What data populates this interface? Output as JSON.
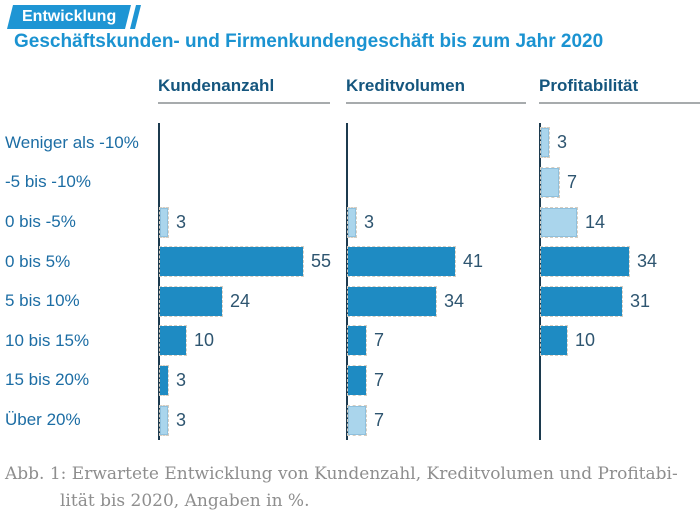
{
  "header": {
    "tag": "Entwicklung",
    "title": "Geschäftskunden- und Firmenkundengeschäft bis zum Jahr 2020"
  },
  "chart_data": {
    "type": "bar",
    "orientation": "horizontal",
    "title": "Geschäftskunden- und Firmenkundengeschäft bis zum Jahr 2020",
    "categories": [
      "Weniger als -10%",
      "-5 bis -10%",
      "0 bis -5%",
      "0 bis 5%",
      "5 bis 10%",
      "10 bis 15%",
      "15 bis 20%",
      "Über 20%"
    ],
    "series": [
      {
        "name": "Kundenanzahl",
        "values": [
          0,
          0,
          3,
          55,
          24,
          10,
          3,
          3
        ],
        "light_indices": [
          2,
          7
        ]
      },
      {
        "name": "Kreditvolumen",
        "values": [
          0,
          0,
          3,
          41,
          34,
          7,
          7,
          7
        ],
        "light_indices": [
          2,
          7
        ]
      },
      {
        "name": "Profitabilität",
        "values": [
          3,
          7,
          14,
          34,
          31,
          10,
          0,
          0
        ],
        "light_indices": [
          0,
          1,
          2
        ]
      }
    ],
    "xlim": [
      0,
      60
    ],
    "value_unit": "%",
    "grid": false,
    "legend": "none",
    "bars_labeled_with_values": true
  },
  "caption": {
    "line1": "Abb. 1: Erwartete Entwicklung von Kundenzahl, Kreditvolumen und Profitabi-",
    "line2": "lität bis 2020, Angaben in %."
  },
  "colors": {
    "brand": "#1E95D4",
    "tag_text": "#FFFFFF",
    "title": "#1B93D1",
    "header": "#15567E",
    "category": "#1C6DA4",
    "value": "#2E5570",
    "bar_main": "#1E8BC3",
    "bar_light": "#AAD5EC",
    "bar_light_border": "#8FC0DD",
    "axis": "#1C3A4E",
    "underline": "#A7ABAD",
    "caption": "#8E8E8E"
  }
}
